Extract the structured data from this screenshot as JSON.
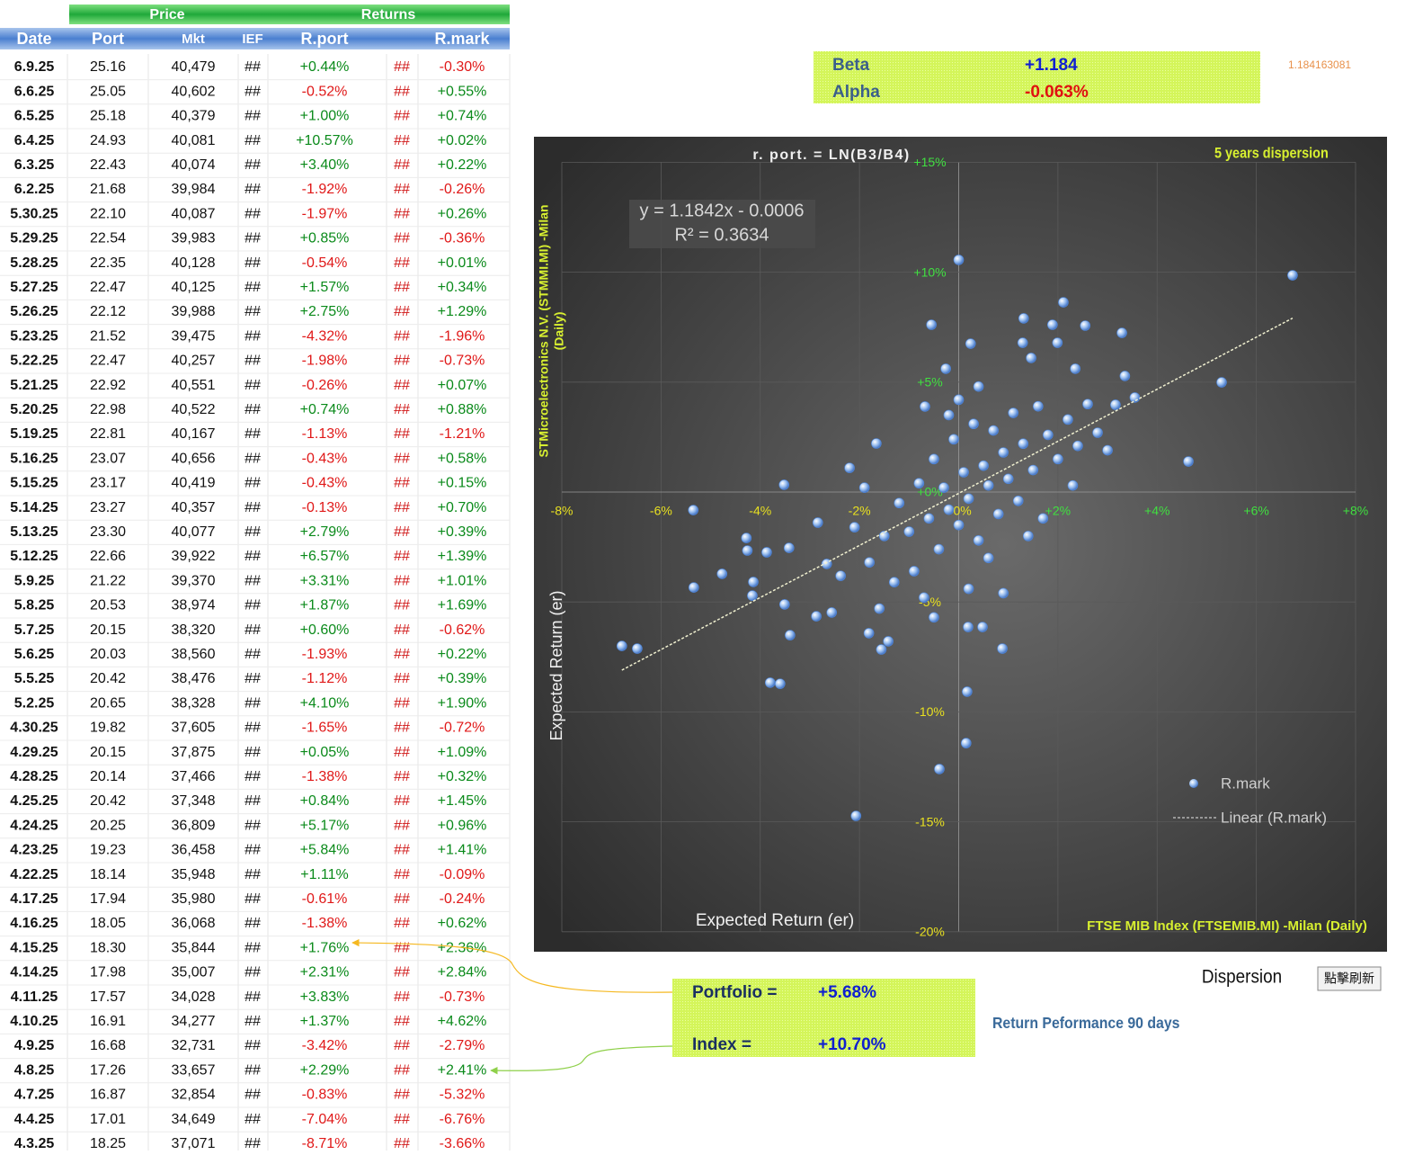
{
  "table": {
    "groups": [
      "Price",
      "Returns"
    ],
    "headers": [
      "Date",
      "Port",
      "Mkt",
      "IEF",
      "R.port",
      "R.mark"
    ],
    "rows": [
      [
        "6.9.25",
        "25.16",
        "40,479",
        "##",
        "+0.44%",
        "##",
        "-0.30%"
      ],
      [
        "6.6.25",
        "25.05",
        "40,602",
        "##",
        "-0.52%",
        "##",
        "+0.55%"
      ],
      [
        "6.5.25",
        "25.18",
        "40,379",
        "##",
        "+1.00%",
        "##",
        "+0.74%"
      ],
      [
        "6.4.25",
        "24.93",
        "40,081",
        "##",
        "+10.57%",
        "##",
        "+0.02%"
      ],
      [
        "6.3.25",
        "22.43",
        "40,074",
        "##",
        "+3.40%",
        "##",
        "+0.22%"
      ],
      [
        "6.2.25",
        "21.68",
        "39,984",
        "##",
        "-1.92%",
        "##",
        "-0.26%"
      ],
      [
        "5.30.25",
        "22.10",
        "40,087",
        "##",
        "-1.97%",
        "##",
        "+0.26%"
      ],
      [
        "5.29.25",
        "22.54",
        "39,983",
        "##",
        "+0.85%",
        "##",
        "-0.36%"
      ],
      [
        "5.28.25",
        "22.35",
        "40,128",
        "##",
        "-0.54%",
        "##",
        "+0.01%"
      ],
      [
        "5.27.25",
        "22.47",
        "40,125",
        "##",
        "+1.57%",
        "##",
        "+0.34%"
      ],
      [
        "5.26.25",
        "22.12",
        "39,988",
        "##",
        "+2.75%",
        "##",
        "+1.29%"
      ],
      [
        "5.23.25",
        "21.52",
        "39,475",
        "##",
        "-4.32%",
        "##",
        "-1.96%"
      ],
      [
        "5.22.25",
        "22.47",
        "40,257",
        "##",
        "-1.98%",
        "##",
        "-0.73%"
      ],
      [
        "5.21.25",
        "22.92",
        "40,551",
        "##",
        "-0.26%",
        "##",
        "+0.07%"
      ],
      [
        "5.20.25",
        "22.98",
        "40,522",
        "##",
        "+0.74%",
        "##",
        "+0.88%"
      ],
      [
        "5.19.25",
        "22.81",
        "40,167",
        "##",
        "-1.13%",
        "##",
        "-1.21%"
      ],
      [
        "5.16.25",
        "23.07",
        "40,656",
        "##",
        "-0.43%",
        "##",
        "+0.58%"
      ],
      [
        "5.15.25",
        "23.17",
        "40,419",
        "##",
        "-0.43%",
        "##",
        "+0.15%"
      ],
      [
        "5.14.25",
        "23.27",
        "40,357",
        "##",
        "-0.13%",
        "##",
        "+0.70%"
      ],
      [
        "5.13.25",
        "23.30",
        "40,077",
        "##",
        "+2.79%",
        "##",
        "+0.39%"
      ],
      [
        "5.12.25",
        "22.66",
        "39,922",
        "##",
        "+6.57%",
        "##",
        "+1.39%"
      ],
      [
        "5.9.25",
        "21.22",
        "39,370",
        "##",
        "+3.31%",
        "##",
        "+1.01%"
      ],
      [
        "5.8.25",
        "20.53",
        "38,974",
        "##",
        "+1.87%",
        "##",
        "+1.69%"
      ],
      [
        "5.7.25",
        "20.15",
        "38,320",
        "##",
        "+0.60%",
        "##",
        "-0.62%"
      ],
      [
        "5.6.25",
        "20.03",
        "38,560",
        "##",
        "-1.93%",
        "##",
        "+0.22%"
      ],
      [
        "5.5.25",
        "20.42",
        "38,476",
        "##",
        "-1.12%",
        "##",
        "+0.39%"
      ],
      [
        "5.2.25",
        "20.65",
        "38,328",
        "##",
        "+4.10%",
        "##",
        "+1.90%"
      ],
      [
        "4.30.25",
        "19.82",
        "37,605",
        "##",
        "-1.65%",
        "##",
        "-0.72%"
      ],
      [
        "4.29.25",
        "20.15",
        "37,875",
        "##",
        "+0.05%",
        "##",
        "+1.09%"
      ],
      [
        "4.28.25",
        "20.14",
        "37,466",
        "##",
        "-1.38%",
        "##",
        "+0.32%"
      ],
      [
        "4.25.25",
        "20.42",
        "37,348",
        "##",
        "+0.84%",
        "##",
        "+1.45%"
      ],
      [
        "4.24.25",
        "20.25",
        "36,809",
        "##",
        "+5.17%",
        "##",
        "+0.96%"
      ],
      [
        "4.23.25",
        "19.23",
        "36,458",
        "##",
        "+5.84%",
        "##",
        "+1.41%"
      ],
      [
        "4.22.25",
        "18.14",
        "35,948",
        "##",
        "+1.11%",
        "##",
        "-0.09%"
      ],
      [
        "4.17.25",
        "17.94",
        "35,980",
        "##",
        "-0.61%",
        "##",
        "-0.24%"
      ],
      [
        "4.16.25",
        "18.05",
        "36,068",
        "##",
        "-1.38%",
        "##",
        "+0.62%"
      ],
      [
        "4.15.25",
        "18.30",
        "35,844",
        "##",
        "+1.76%",
        "##",
        "+2.36%"
      ],
      [
        "4.14.25",
        "17.98",
        "35,007",
        "##",
        "+2.31%",
        "##",
        "+2.84%"
      ],
      [
        "4.11.25",
        "17.57",
        "34,028",
        "##",
        "+3.83%",
        "##",
        "-0.73%"
      ],
      [
        "4.10.25",
        "16.91",
        "34,277",
        "##",
        "+1.37%",
        "##",
        "+4.62%"
      ],
      [
        "4.9.25",
        "16.68",
        "32,731",
        "##",
        "-3.42%",
        "##",
        "-2.79%"
      ],
      [
        "4.8.25",
        "17.26",
        "33,657",
        "##",
        "+2.29%",
        "##",
        "+2.41%"
      ],
      [
        "4.7.25",
        "16.87",
        "32,854",
        "##",
        "-0.83%",
        "##",
        "-5.32%"
      ],
      [
        "4.4.25",
        "17.01",
        "34,649",
        "##",
        "-7.04%",
        "##",
        "-6.76%"
      ],
      [
        "4.3.25",
        "18.25",
        "37,071",
        "##",
        "-8.71%",
        "##",
        "-3.66%"
      ]
    ]
  },
  "stats": {
    "beta_label": "Beta",
    "beta": "+1.184",
    "alpha_label": "Alpha",
    "alpha": "-0.063%",
    "beta_raw": "1.184163081"
  },
  "chart_data": {
    "type": "scatter",
    "title": "r. port.  =  LN(B3/B4)",
    "subtitle": "5 years dispersion",
    "y_label": [
      "STMicroelectronics N.V. (STMMI.MI) -Milan",
      "(Daily)"
    ],
    "y_label_2": "Expected Return  (er)",
    "x_label": "Expected Return (er)",
    "x_label_2": "FTSE MIB Index (FTSEMIB.MI) -Milan  (Daily)",
    "trendline": {
      "name": "Linear (R.mark)",
      "equation": "y = 1.1842x - 0.0006",
      "r_squared": "R² = 0.3634",
      "slope": 1.1842,
      "intercept": -0.0006
    },
    "xlim": [
      -0.08,
      0.08
    ],
    "ylim": [
      -0.2,
      0.15
    ],
    "xticks": [
      {
        "value": -0.08,
        "label": "-8%"
      },
      {
        "value": -0.06,
        "label": "-6%"
      },
      {
        "value": -0.04,
        "label": "-4%"
      },
      {
        "value": -0.02,
        "label": "-2%"
      },
      {
        "value": 0,
        "label": "+0%"
      },
      {
        "value": 0.02,
        "label": "+2%"
      },
      {
        "value": 0.04,
        "label": "+4%"
      },
      {
        "value": 0.06,
        "label": "+6%"
      },
      {
        "value": 0.08,
        "label": "+8%"
      }
    ],
    "yticks": [
      {
        "value": 0.15,
        "label": "+15%"
      },
      {
        "value": 0.1,
        "label": "+10%"
      },
      {
        "value": 0.05,
        "label": "+5%"
      },
      {
        "value": 0,
        "label": "+0%"
      },
      {
        "value": -0.05,
        "label": "-5%"
      },
      {
        "value": -0.1,
        "label": "-10%"
      },
      {
        "value": -0.15,
        "label": "-15%"
      },
      {
        "value": -0.2,
        "label": "-20%"
      }
    ],
    "grid": true,
    "x": [
      0,
      0.0673,
      0.0211,
      -0.0055,
      0.0131,
      0.0189,
      0.0255,
      0.0329,
      0.0024,
      -0.0026,
      0.0335,
      0.053,
      0.0355,
      0.0463,
      -0.0535,
      -0.0352,
      -0.0679,
      -0.0648,
      -0.0534,
      -0.0477,
      -0.0428,
      -0.0426,
      -0.0387,
      -0.0342,
      -0.0414,
      -0.0416,
      -0.038,
      -0.036,
      -0.034,
      -0.0351,
      -0.0207,
      -0.0039,
      0.0015,
      0.0017,
      0.0019,
      0.0048,
      0.0088,
      -0.0181,
      -0.0156,
      -0.0142,
      0.0129,
      0.0199,
      0.0235,
      0.0146,
      -0.0068,
      -0.022,
      -0.0166,
      0.0316,
      -0.0284,
      -0.0266,
      -0.0238,
      -0.0287,
      -0.0256,
      -0.015,
      -0.012,
      -0.01,
      -0.008,
      -0.006,
      -0.005,
      -0.004,
      -0.003,
      -0.002,
      -0.001,
      0,
      0.001,
      0.002,
      0.003,
      0.004,
      0.005,
      0.006,
      0.007,
      0.008,
      0.009,
      0.01,
      0.011,
      0.012,
      0.013,
      0.015,
      0.016,
      0.018,
      0.02,
      0.022,
      0.024,
      0.026,
      0.028,
      0.03,
      -0.018,
      -0.013,
      -0.009,
      -0.007,
      0.002,
      0.006,
      0.014,
      -0.021,
      -0.019,
      0,
      -0.002,
      0.004,
      0.017,
      0.023,
      -0.016,
      -0.005,
      0.009
    ],
    "series": [
      {
        "name": "R.mark",
        "color": "#4f86d9",
        "values": [
          0.1056,
          0.0986,
          0.0863,
          0.0761,
          0.079,
          0.0761,
          0.0757,
          0.0724,
          0.0675,
          0.0561,
          0.0528,
          0.0499,
          0.043,
          0.0139,
          -0.0082,
          0.0033,
          -0.07,
          -0.0712,
          -0.0434,
          -0.0372,
          -0.0209,
          -0.0266,
          -0.0274,
          -0.0254,
          -0.0409,
          -0.0471,
          -0.0867,
          -0.0872,
          -0.0651,
          -0.0511,
          -0.1473,
          -0.126,
          -0.1142,
          -0.0908,
          -0.0614,
          -0.0614,
          -0.0712,
          -0.0642,
          -0.0716,
          -0.0679,
          0.0679,
          0.0679,
          0.0561,
          0.061,
          0.0389,
          0.011,
          0.0221,
          0.0397,
          -0.0139,
          -0.0327,
          -0.0381,
          -0.0565,
          -0.0548,
          -0.02,
          -0.005,
          -0.018,
          0.004,
          -0.012,
          0.015,
          -0.026,
          0.002,
          -0.008,
          0.024,
          -0.015,
          0.009,
          -0.003,
          0.031,
          -0.022,
          0.012,
          0.003,
          0.028,
          -0.01,
          0.018,
          0.006,
          0.036,
          -0.004,
          0.022,
          0.01,
          0.039,
          0.026,
          0.015,
          0.033,
          0.021,
          0.04,
          0.027,
          0.019,
          -0.032,
          -0.041,
          -0.036,
          -0.048,
          -0.044,
          -0.03,
          -0.02,
          -0.016,
          0.002,
          0.042,
          0.035,
          0.048,
          -0.012,
          0.003,
          -0.053,
          -0.057,
          -0.046
        ]
      }
    ]
  },
  "summary": {
    "portfolio_label": "Portfolio  =",
    "portfolio": "+5.68%",
    "index_label": "Index  =",
    "index": "+10.70%",
    "caption": "Return Peformance 90 days"
  },
  "dispersion": "Dispersion",
  "button": "點擊刷新"
}
